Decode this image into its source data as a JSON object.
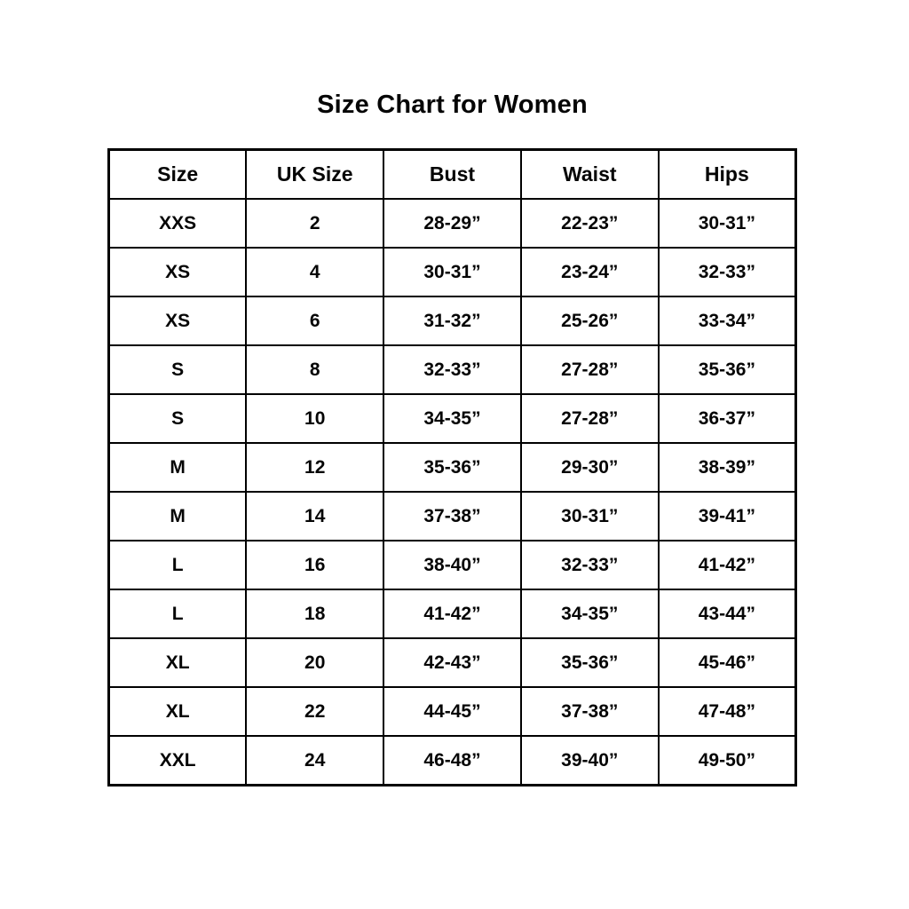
{
  "page": {
    "title": "Size Chart for Women"
  },
  "chart_data": {
    "type": "table",
    "title": "Size Chart for Women",
    "columns": [
      "Size",
      "UK Size",
      "Bust",
      "Waist",
      "Hips"
    ],
    "rows": [
      [
        "XXS",
        "2",
        "28-29”",
        "22-23”",
        "30-31”"
      ],
      [
        "XS",
        "4",
        "30-31”",
        "23-24”",
        "32-33”"
      ],
      [
        "XS",
        "6",
        "31-32”",
        "25-26”",
        "33-34”"
      ],
      [
        "S",
        "8",
        "32-33”",
        "27-28”",
        "35-36”"
      ],
      [
        "S",
        "10",
        "34-35”",
        "27-28”",
        "36-37”"
      ],
      [
        "M",
        "12",
        "35-36”",
        "29-30”",
        "38-39”"
      ],
      [
        "M",
        "14",
        "37-38”",
        "30-31”",
        "39-41”"
      ],
      [
        "L",
        "16",
        "38-40”",
        "32-33”",
        "41-42”"
      ],
      [
        "L",
        "18",
        "41-42”",
        "34-35”",
        "43-44”"
      ],
      [
        "XL",
        "20",
        "42-43”",
        "35-36”",
        "45-46”"
      ],
      [
        "XL",
        "22",
        "44-45”",
        "37-38”",
        "47-48”"
      ],
      [
        "XXL",
        "24",
        "46-48”",
        "39-40”",
        "49-50”"
      ]
    ],
    "layout": {
      "text_color": "#050505",
      "border_color": "#000000",
      "background": "#ffffff",
      "grid": "on"
    }
  }
}
